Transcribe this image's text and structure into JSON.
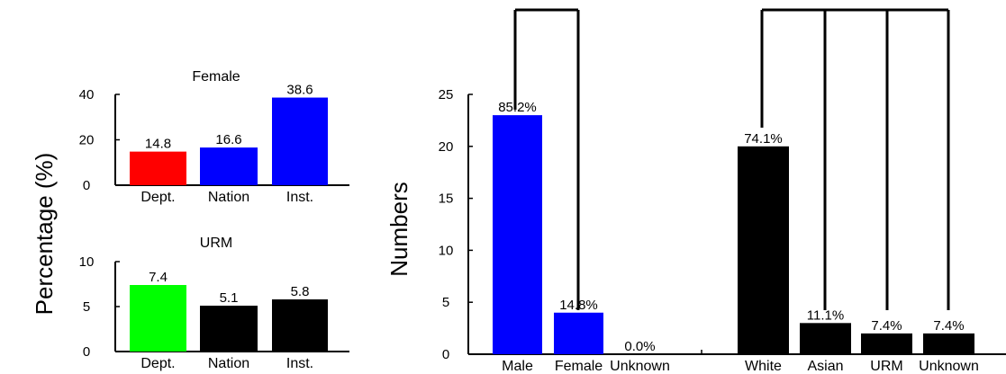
{
  "y_label_left": "Percentage (%)",
  "y_label_right": "Numbers",
  "colors": {
    "red": "#ff0000",
    "blue": "#0000ff",
    "green": "#00ff00",
    "black": "#000000"
  },
  "chart_data": [
    {
      "type": "bar",
      "title": "Female",
      "categories": [
        "Dept.",
        "Nation",
        "Inst."
      ],
      "values": [
        14.8,
        16.6,
        38.6
      ],
      "data_labels": [
        "14.8",
        "16.6",
        "38.6"
      ],
      "colors": [
        "#ff0000",
        "#0000ff",
        "#0000ff"
      ],
      "ylim": [
        0,
        40
      ],
      "yticks": [
        0,
        20,
        40
      ],
      "grid": false
    },
    {
      "type": "bar",
      "title": "URM",
      "categories": [
        "Dept.",
        "Nation",
        "Inst."
      ],
      "values": [
        7.4,
        5.1,
        5.8
      ],
      "data_labels": [
        "7.4",
        "5.1",
        "5.8"
      ],
      "colors": [
        "#00ff00",
        "#000000",
        "#000000"
      ],
      "ylim": [
        0,
        10
      ],
      "yticks": [
        0,
        5,
        10
      ],
      "grid": false
    },
    {
      "type": "bar",
      "ylabel": "Numbers",
      "categories": [
        "Male",
        "Female",
        "Unknown",
        "White",
        "Asian",
        "URM",
        "Unknown"
      ],
      "values": [
        23,
        4,
        0,
        20,
        3,
        2,
        2
      ],
      "data_labels": [
        "85.2%",
        "14.8%",
        "0.0%",
        "74.1%",
        "11.1%",
        "7.4%",
        "7.4%"
      ],
      "colors": [
        "#0000ff",
        "#0000ff",
        "#000000",
        "#000000",
        "#000000",
        "#000000",
        "#000000"
      ],
      "ylim": [
        0,
        25
      ],
      "yticks": [
        0,
        5,
        10,
        15,
        20,
        25
      ],
      "grid": false,
      "groups": [
        {
          "name_ref": "gender",
          "members": [
            0,
            1,
            2
          ]
        },
        {
          "name_ref": "ethnicity",
          "members": [
            3,
            4,
            5,
            6
          ]
        }
      ]
    }
  ]
}
